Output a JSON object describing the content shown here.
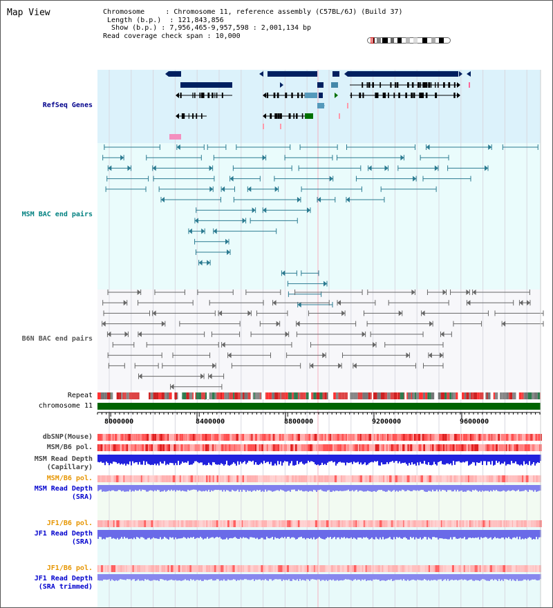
{
  "panel_title": "Map View",
  "info": {
    "chromosome_key": "Chromosome",
    "chromosome_value": "Chromosome 11, reference assembly (C57BL/6J) (Build 37)",
    "length_key": "Length (b.p.)",
    "length_value": "121,843,856",
    "show_key": "Show (b.p.)",
    "show_value": "7,956,465-9,957,598 : 2,001,134 bp",
    "coverage_key": "Read coverage check span",
    "coverage_value": "10,000"
  },
  "tracks": {
    "refseq": "RefSeq Genes",
    "msm_bac": "MSM BAC end pairs",
    "b6n_bac": "B6N BAC end pairs",
    "repeat": "Repeat",
    "chromosome": "chromosome 11",
    "dbsnp": "dbSNP(Mouse)",
    "msm_b6_pol_cap": "MSM/B6 pol.",
    "msm_depth_cap_1": "MSM Read Depth",
    "msm_depth_cap_2": "(Capillary)",
    "msm_b6_pol_sra": "MSM/B6 pol.",
    "msm_depth_sra_1": "MSM Read Depth",
    "msm_depth_sra_2": "(SRA)",
    "jf1_b6_pol": "JF1/B6 pol.",
    "jf1_depth_1": "JF1 Read Depth",
    "jf1_depth_2": "(SRA)",
    "jf1_b6_pol_trim": "JF1/B6 pol.",
    "jf1_trim_1": "JF1 Read Depth",
    "jf1_trim_2": "(SRA trimmed)"
  },
  "axis": {
    "ticks": [
      "8000000",
      "8400000",
      "8800000",
      "9200000",
      "9600000"
    ]
  },
  "colors": {
    "refseq_label": "#00008b",
    "msm_label": "#008080",
    "b6n_label": "#555555",
    "pol_label": "#e69500",
    "depth_label": "#0000cd",
    "gene_dark": "#002060",
    "gene_green": "#007000",
    "chromosome_bar": "#006400"
  }
}
